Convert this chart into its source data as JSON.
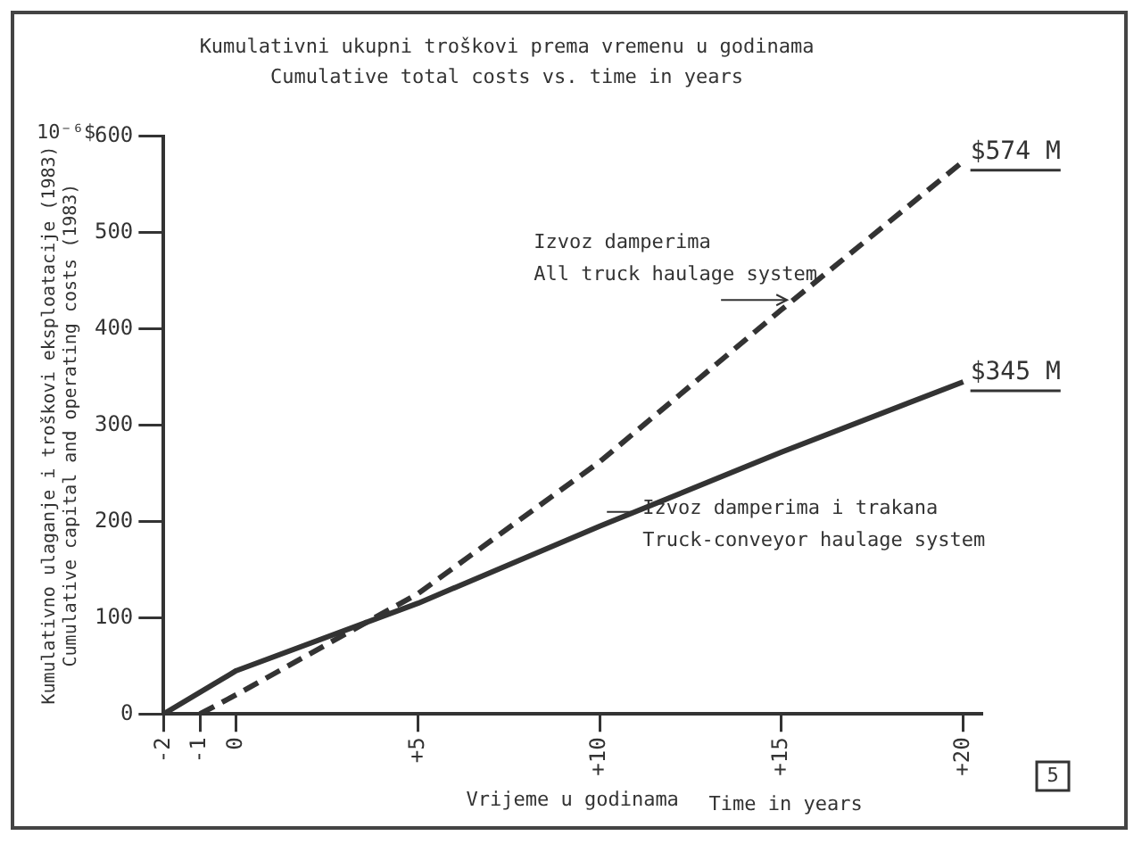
{
  "chart_data": {
    "type": "line",
    "title": "Kumulativni ukupni troškovi prema vremenu u godinama",
    "subtitle": "Cumulative total costs vs. time in years",
    "xlabel": "Vrijeme u godinama",
    "ylabel": "Kumulativno ulaganje i troškovi eksploatacije (1983)\nCumulative capital and operating costs (1983)",
    "series": [
      {
        "color": "#333333",
        "line_style": "dashed",
        "x": [
          -1,
          0,
          5,
          10,
          15,
          20
        ],
        "values": [
          0,
          20,
          125,
          262,
          420,
          574
        ],
        "value_labels": [
          null,
          null,
          null,
          null,
          null,
          "$574 M"
        ]
      },
      {
        "color": "#333333",
        "line_style": "solid",
        "x": [
          -2,
          0,
          5,
          10,
          15,
          20
        ],
        "values": [
          0,
          45,
          115,
          195,
          272,
          345
        ],
        "value_labels": [
          null,
          null,
          null,
          null,
          null,
          "$345 M"
        ]
      }
    ],
    "xlim": [
      -2,
      20.5
    ],
    "xticks": [
      -2,
      -1,
      0,
      {
        "value": 5,
        "label": "+5"
      },
      {
        "value": 10,
        "label": "+10"
      },
      {
        "value": 15,
        "label": "+15"
      },
      {
        "value": 20,
        "label": "+20"
      }
    ],
    "ylim": [
      0,
      600
    ],
    "yticks": [
      0,
      100,
      200,
      300,
      400,
      500,
      600
    ],
    "grid": false,
    "legend": false,
    "marker": "none",
    "annotations": [
      "10⁻⁶$",
      {
        "text": "Izvoz damperima\nAll truck haulage system",
        "x": 15.3,
        "y": 430
      },
      {
        "text": "Izvoz damperima i trakana\nTruck-conveyor haulage system",
        "x": 10,
        "y": 195
      },
      "Time in years",
      "5"
    ]
  }
}
